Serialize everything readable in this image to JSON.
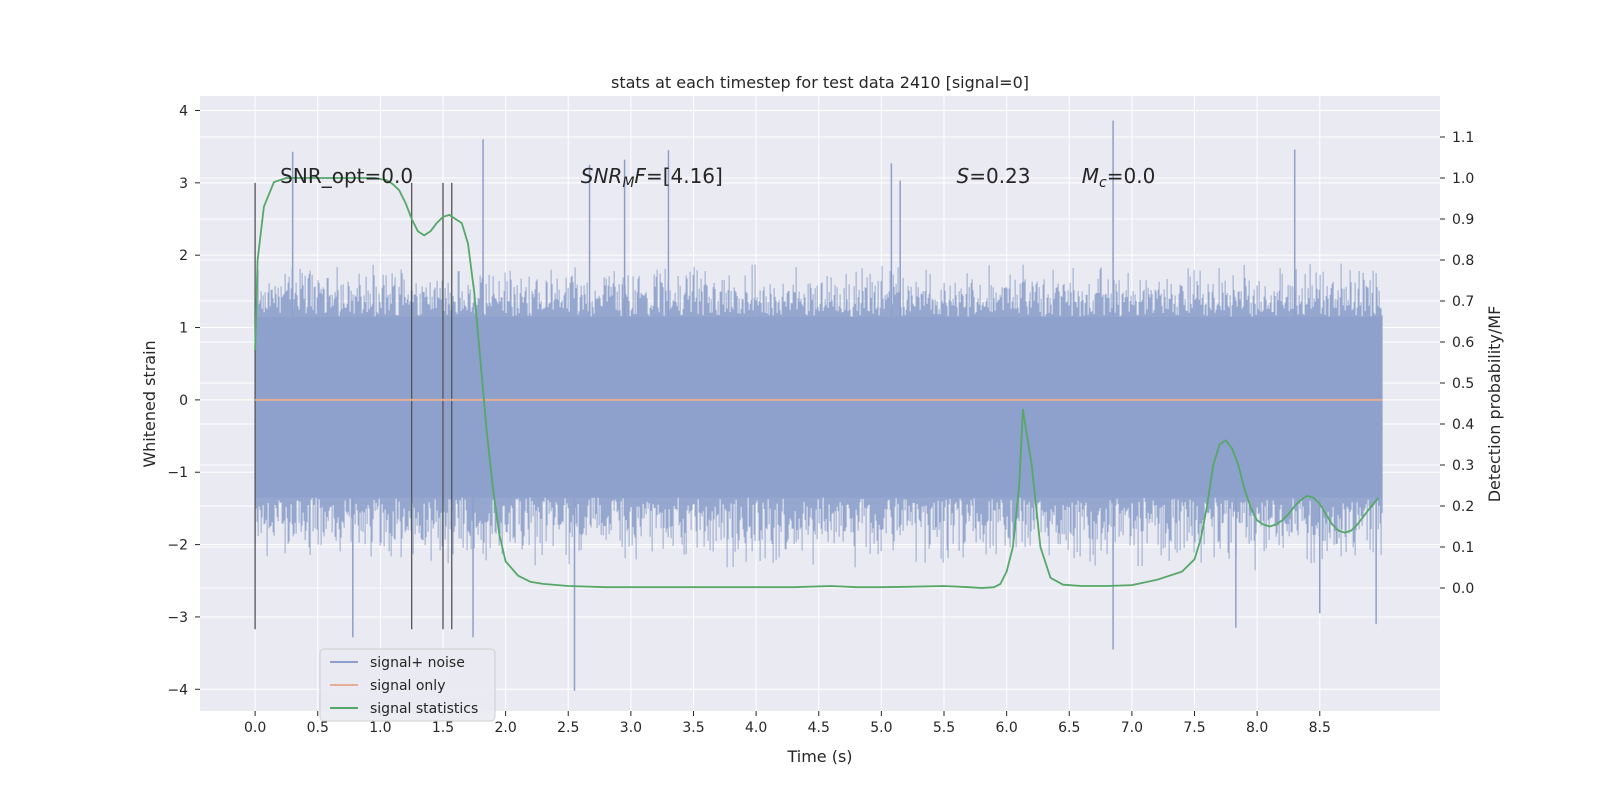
{
  "chart_data": {
    "type": "line",
    "title": "stats at each timestep for test data 2410 [signal=0]",
    "xlabel": "Time (s)",
    "ylabel": "Whitened strain",
    "y2label": "Detection probability/MF",
    "xlim": [
      -0.44,
      9.46
    ],
    "ylim": [
      -4.3,
      4.2
    ],
    "y2lim": [
      -0.3,
      1.2
    ],
    "xticks": [
      0.0,
      0.5,
      1.0,
      1.5,
      2.0,
      2.5,
      3.0,
      3.5,
      4.0,
      4.5,
      5.0,
      5.5,
      6.0,
      6.5,
      7.0,
      7.5,
      8.0,
      8.5
    ],
    "xtick_labels": [
      "0.0",
      "0.5",
      "1.0",
      "1.5",
      "2.0",
      "2.5",
      "3.0",
      "3.5",
      "4.0",
      "4.5",
      "5.0",
      "5.5",
      "6.0",
      "6.5",
      "7.0",
      "7.5",
      "8.0",
      "8.5"
    ],
    "yticks": [
      -4,
      -3,
      -2,
      -1,
      0,
      1,
      2,
      3,
      4
    ],
    "ytick_labels": [
      "−4",
      "−3",
      "−2",
      "−1",
      "0",
      "1",
      "2",
      "3",
      "4"
    ],
    "y2ticks": [
      0.0,
      0.1,
      0.2,
      0.3,
      0.4,
      0.5,
      0.6,
      0.7,
      0.8,
      0.9,
      1.0,
      1.1
    ],
    "y2tick_labels": [
      "0.0",
      "0.1",
      "0.2",
      "0.3",
      "0.4",
      "0.5",
      "0.6",
      "0.7",
      "0.8",
      "0.9",
      "1.0",
      "1.1"
    ],
    "grid": true,
    "legend_placement": "lower-left",
    "annotations": [
      {
        "name": "snr-opt",
        "parts": [
          {
            "t": "SNR_opt=0.0"
          }
        ],
        "x": 0.2,
        "y": 3.0
      },
      {
        "name": "snr-mf",
        "parts": [
          {
            "t": "SNR",
            "i": true
          },
          {
            "t": "M",
            "i": true,
            "sub": true
          },
          {
            "t": "F",
            "i": true
          },
          {
            "t": "=[4.16]"
          }
        ],
        "x": 2.6,
        "y": 3.0
      },
      {
        "name": "s-value",
        "parts": [
          {
            "t": "S",
            "i": true
          },
          {
            "t": "=0.23"
          }
        ],
        "x": 5.6,
        "y": 3.0
      },
      {
        "name": "mc-value",
        "parts": [
          {
            "t": "M",
            "i": true
          },
          {
            "t": "c",
            "i": true,
            "sub": true
          },
          {
            "t": "=0.0"
          }
        ],
        "x": 6.6,
        "y": 3.0
      }
    ],
    "vertical_markers": {
      "x": [
        0.0,
        1.25,
        1.5,
        1.57
      ],
      "y_range": [
        -3.17,
        3.0
      ],
      "color": "#555555"
    },
    "series": [
      {
        "name": "signal+ noise",
        "color": "#8da0cb",
        "kind": "noise",
        "x_range": [
          0.0,
          9.0
        ],
        "band": [
          -1.35,
          1.15
        ],
        "envelope": [
          -2.2,
          1.8
        ],
        "min": -4.02,
        "max": 3.86,
        "spikes": [
          [
            0.3,
            3.43
          ],
          [
            0.78,
            -3.28
          ],
          [
            1.82,
            3.6
          ],
          [
            1.74,
            -3.28
          ],
          [
            2.55,
            -4.02
          ],
          [
            2.67,
            3.25
          ],
          [
            2.95,
            3.32
          ],
          [
            3.3,
            3.45
          ],
          [
            5.08,
            3.27
          ],
          [
            5.15,
            3.03
          ],
          [
            6.85,
            3.86
          ],
          [
            6.85,
            -3.45
          ],
          [
            7.83,
            -3.15
          ],
          [
            8.3,
            3.46
          ],
          [
            8.5,
            -2.95
          ],
          [
            8.95,
            -3.1
          ]
        ]
      },
      {
        "name": "signal only",
        "color": "#e5ae95",
        "x": [
          0.0,
          9.0
        ],
        "y": [
          0.0,
          0.0
        ]
      },
      {
        "name": "signal statistics",
        "color": "#55a868",
        "axis": "right",
        "x": [
          0.0,
          0.02,
          0.07,
          0.15,
          0.25,
          0.4,
          0.6,
          0.8,
          0.95,
          1.05,
          1.1,
          1.15,
          1.2,
          1.25,
          1.3,
          1.35,
          1.4,
          1.45,
          1.5,
          1.55,
          1.6,
          1.65,
          1.7,
          1.75,
          1.8,
          1.85,
          1.9,
          1.95,
          2.0,
          2.1,
          2.2,
          2.3,
          2.5,
          2.8,
          3.0,
          3.3,
          3.6,
          4.0,
          4.3,
          4.6,
          4.8,
          5.0,
          5.2,
          5.5,
          5.7,
          5.8,
          5.9,
          5.95,
          6.0,
          6.05,
          6.1,
          6.13,
          6.2,
          6.27,
          6.35,
          6.45,
          6.6,
          6.8,
          7.0,
          7.2,
          7.4,
          7.5,
          7.55,
          7.6,
          7.65,
          7.7,
          7.75,
          7.8,
          7.85,
          7.9,
          7.95,
          8.0,
          8.05,
          8.1,
          8.15,
          8.2,
          8.25,
          8.3,
          8.35,
          8.4,
          8.45,
          8.5,
          8.55,
          8.6,
          8.65,
          8.7,
          8.75,
          8.8,
          8.85,
          8.9,
          8.97
        ],
        "y": [
          0.58,
          0.8,
          0.93,
          0.99,
          1.0,
          1.0,
          1.0,
          1.0,
          1.0,
          0.995,
          0.985,
          0.97,
          0.94,
          0.9,
          0.87,
          0.86,
          0.87,
          0.89,
          0.905,
          0.91,
          0.9,
          0.89,
          0.84,
          0.72,
          0.55,
          0.38,
          0.24,
          0.13,
          0.065,
          0.03,
          0.015,
          0.01,
          0.005,
          0.002,
          0.002,
          0.002,
          0.002,
          0.002,
          0.002,
          0.005,
          0.002,
          0.002,
          0.003,
          0.005,
          0.002,
          0.0,
          0.002,
          0.01,
          0.04,
          0.1,
          0.25,
          0.435,
          0.3,
          0.1,
          0.025,
          0.008,
          0.005,
          0.005,
          0.007,
          0.02,
          0.04,
          0.07,
          0.12,
          0.2,
          0.3,
          0.35,
          0.36,
          0.34,
          0.3,
          0.24,
          0.195,
          0.165,
          0.155,
          0.15,
          0.155,
          0.165,
          0.18,
          0.2,
          0.215,
          0.225,
          0.22,
          0.205,
          0.18,
          0.155,
          0.14,
          0.135,
          0.14,
          0.155,
          0.175,
          0.195,
          0.22
        ]
      }
    ]
  }
}
